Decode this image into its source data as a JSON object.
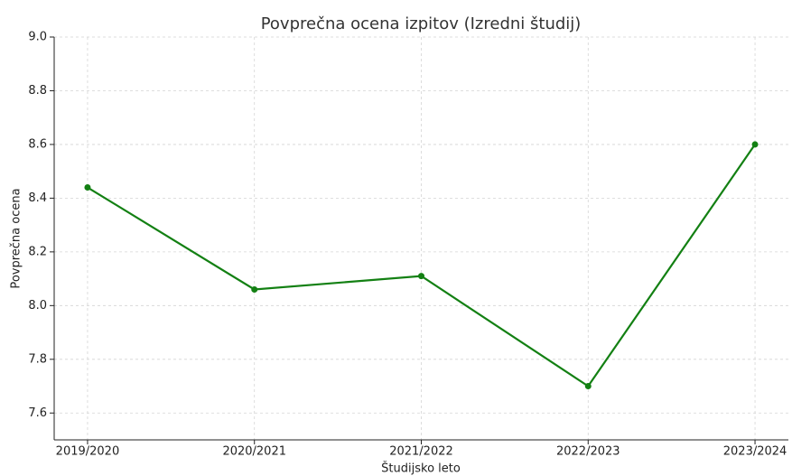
{
  "chart_data": {
    "type": "line",
    "title": "Povprečna ocena izpitov (Izredni študij)",
    "xlabel": "Študijsko leto",
    "ylabel": "Povprečna ocena",
    "categories": [
      "2019/2020",
      "2020/2021",
      "2021/2022",
      "2022/2023",
      "2023/2024"
    ],
    "series": [
      {
        "name": "Povprečna ocena",
        "color": "#138013",
        "values": [
          8.44,
          8.06,
          8.11,
          7.7,
          8.6
        ]
      }
    ],
    "ylim": [
      7.5,
      9.0
    ],
    "yticks": [
      7.6,
      7.8,
      {
        "value": 8,
        "label": "8.0"
      },
      8.2,
      8.4,
      8.6,
      8.8,
      {
        "value": 9,
        "label": "9.0"
      }
    ],
    "grid": true
  }
}
